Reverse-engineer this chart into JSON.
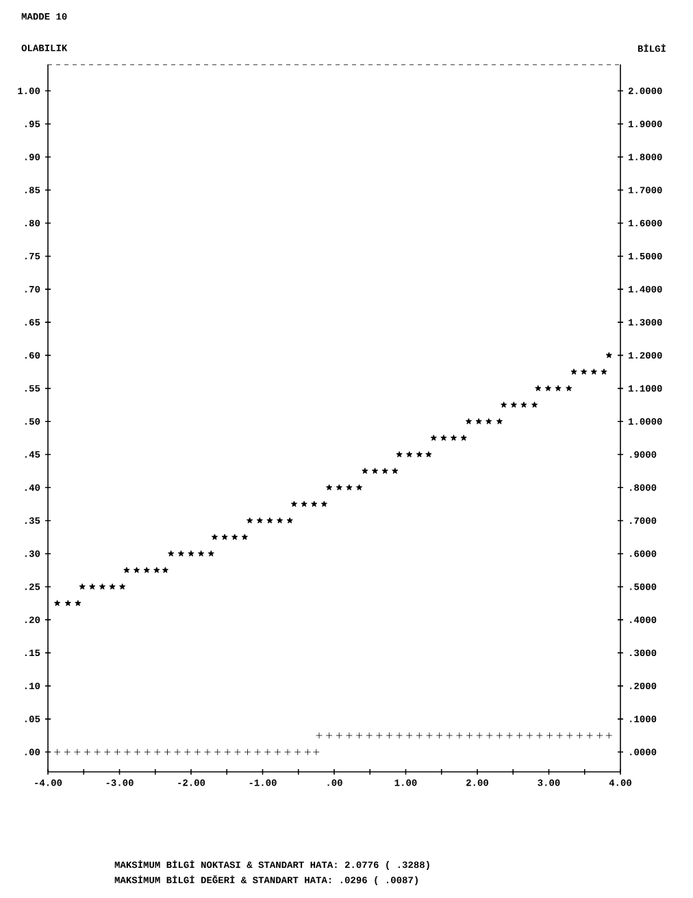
{
  "chart_data": {
    "type": "scatter",
    "title": "MADDE 10",
    "ylabel": "OLABILIK",
    "y2label": "BİLGİ",
    "annotations": [
      "MAKSİMUM BİLGİ NOKTASI & STANDART HATA: 2.0776 ( .3288)",
      "MAKSİMUM BİLGİ DEĞERİ & STANDART HATA: .0296 ( .0087)"
    ],
    "xlim": [
      -4,
      4
    ],
    "ylim": [
      -0.03,
      1.04
    ],
    "y2lim": [
      -0.06,
      2.08
    ],
    "xticks": [
      {
        "value": -4,
        "label": "-4.00"
      },
      {
        "value": -3.5,
        "label": null
      },
      {
        "value": -3,
        "label": "-3.00"
      },
      {
        "value": -2.5,
        "label": null
      },
      {
        "value": -2,
        "label": "-2.00"
      },
      {
        "value": -1.5,
        "label": null
      },
      {
        "value": -1,
        "label": "-1.00"
      },
      {
        "value": -0.5,
        "label": null
      },
      {
        "value": 0,
        "label": ".00"
      },
      {
        "value": 0.5,
        "label": null
      },
      {
        "value": 1,
        "label": "1.00"
      },
      {
        "value": 1.5,
        "label": null
      },
      {
        "value": 2,
        "label": "2.00"
      },
      {
        "value": 2.5,
        "label": null
      },
      {
        "value": 3,
        "label": "3.00"
      },
      {
        "value": 3.5,
        "label": null
      },
      {
        "value": 4,
        "label": "4.00"
      }
    ],
    "yticks": [
      {
        "value": 0,
        "label": ".00"
      },
      {
        "value": 0.05,
        "label": ".05"
      },
      {
        "value": 0.1,
        "label": ".10"
      },
      {
        "value": 0.15,
        "label": ".15"
      },
      {
        "value": 0.2,
        "label": ".20"
      },
      {
        "value": 0.25,
        "label": ".25"
      },
      {
        "value": 0.3,
        "label": ".30"
      },
      {
        "value": 0.35,
        "label": ".35"
      },
      {
        "value": 0.4,
        "label": ".40"
      },
      {
        "value": 0.45,
        "label": ".45"
      },
      {
        "value": 0.5,
        "label": ".50"
      },
      {
        "value": 0.55,
        "label": ".55"
      },
      {
        "value": 0.6,
        "label": ".60"
      },
      {
        "value": 0.65,
        "label": ".65"
      },
      {
        "value": 0.7,
        "label": ".70"
      },
      {
        "value": 0.75,
        "label": ".75"
      },
      {
        "value": 0.8,
        "label": ".80"
      },
      {
        "value": 0.85,
        "label": ".85"
      },
      {
        "value": 0.9,
        "label": ".90"
      },
      {
        "value": 0.95,
        "label": ".95"
      },
      {
        "value": 1,
        "label": "1.00"
      }
    ],
    "y2ticks": [
      {
        "value": 0,
        "label": ".0000"
      },
      {
        "value": 0.1,
        "label": ".1000"
      },
      {
        "value": 0.2,
        "label": ".2000"
      },
      {
        "value": 0.3,
        "label": ".3000"
      },
      {
        "value": 0.4,
        "label": ".4000"
      },
      {
        "value": 0.5,
        "label": ".5000"
      },
      {
        "value": 0.6,
        "label": ".6000"
      },
      {
        "value": 0.7,
        "label": ".7000"
      },
      {
        "value": 0.8,
        "label": ".8000"
      },
      {
        "value": 0.9,
        "label": ".9000"
      },
      {
        "value": 1,
        "label": "1.0000"
      },
      {
        "value": 1.1,
        "label": "1.1000"
      },
      {
        "value": 1.2,
        "label": "1.2000"
      },
      {
        "value": 1.3,
        "label": "1.3000"
      },
      {
        "value": 1.4,
        "label": "1.4000"
      },
      {
        "value": 1.5,
        "label": "1.5000"
      },
      {
        "value": 1.6,
        "label": "1.6000"
      },
      {
        "value": 1.7,
        "label": "1.7000"
      },
      {
        "value": 1.8,
        "label": "1.8000"
      },
      {
        "value": 1.9,
        "label": "1.9000"
      },
      {
        "value": 2,
        "label": "2.0000"
      }
    ],
    "grid": false,
    "series": [
      {
        "color": "#000000",
        "marker": "star",
        "x": [
          -3.87,
          -3.72,
          -3.58,
          -3.52,
          -3.38,
          -3.24,
          -3.1,
          -2.96,
          -2.9,
          -2.76,
          -2.62,
          -2.48,
          -2.36,
          -2.28,
          -2.14,
          -2.0,
          -1.86,
          -1.72,
          -1.67,
          -1.53,
          -1.39,
          -1.25,
          -1.18,
          -1.04,
          -0.9,
          -0.76,
          -0.62,
          -0.56,
          -0.42,
          -0.28,
          -0.14,
          -0.07,
          0.07,
          0.21,
          0.35,
          0.43,
          0.57,
          0.71,
          0.85,
          0.91,
          1.05,
          1.19,
          1.32,
          1.39,
          1.53,
          1.67,
          1.81,
          1.88,
          2.02,
          2.16,
          2.31,
          2.37,
          2.51,
          2.65,
          2.8,
          2.85,
          2.99,
          3.13,
          3.28,
          3.35,
          3.49,
          3.63,
          3.77,
          3.84
        ],
        "values": [
          0.225,
          0.225,
          0.225,
          0.25,
          0.25,
          0.25,
          0.25,
          0.25,
          0.275,
          0.275,
          0.275,
          0.275,
          0.275,
          0.3,
          0.3,
          0.3,
          0.3,
          0.3,
          0.325,
          0.325,
          0.325,
          0.325,
          0.35,
          0.35,
          0.35,
          0.35,
          0.35,
          0.375,
          0.375,
          0.375,
          0.375,
          0.4,
          0.4,
          0.4,
          0.4,
          0.425,
          0.425,
          0.425,
          0.425,
          0.45,
          0.45,
          0.45,
          0.45,
          0.475,
          0.475,
          0.475,
          0.475,
          0.5,
          0.5,
          0.5,
          0.5,
          0.525,
          0.525,
          0.525,
          0.525,
          0.55,
          0.55,
          0.55,
          0.55,
          0.575,
          0.575,
          0.575,
          0.575,
          0.6
        ]
      },
      {
        "color": "#000000",
        "marker": "cross",
        "axis": "y2",
        "x": [
          -3.87,
          -3.73,
          -3.59,
          -3.45,
          -3.31,
          -3.17,
          -3.03,
          -2.89,
          -2.75,
          -2.61,
          -2.47,
          -2.33,
          -2.19,
          -2.05,
          -1.91,
          -1.77,
          -1.63,
          -1.49,
          -1.35,
          -1.21,
          -1.07,
          -0.93,
          -0.79,
          -0.65,
          -0.51,
          -0.37,
          -0.25,
          -0.21,
          -0.07,
          0.07,
          0.21,
          0.35,
          0.49,
          0.63,
          0.77,
          0.91,
          1.05,
          1.19,
          1.33,
          1.47,
          1.61,
          1.75,
          1.89,
          2.03,
          2.17,
          2.31,
          2.45,
          2.59,
          2.73,
          2.87,
          3.01,
          3.15,
          3.29,
          3.43,
          3.57,
          3.71,
          3.84
        ],
        "values": [
          0,
          0,
          0,
          0,
          0,
          0,
          0,
          0,
          0,
          0,
          0,
          0,
          0,
          0,
          0,
          0,
          0,
          0,
          0,
          0,
          0,
          0,
          0,
          0,
          0,
          0,
          0,
          0.05,
          0.05,
          0.05,
          0.05,
          0.05,
          0.05,
          0.05,
          0.05,
          0.05,
          0.05,
          0.05,
          0.05,
          0.05,
          0.05,
          0.05,
          0.05,
          0.05,
          0.05,
          0.05,
          0.05,
          0.05,
          0.05,
          0.05,
          0.05,
          0.05,
          0.05,
          0.05,
          0.05,
          0.05,
          0.05
        ]
      }
    ]
  }
}
